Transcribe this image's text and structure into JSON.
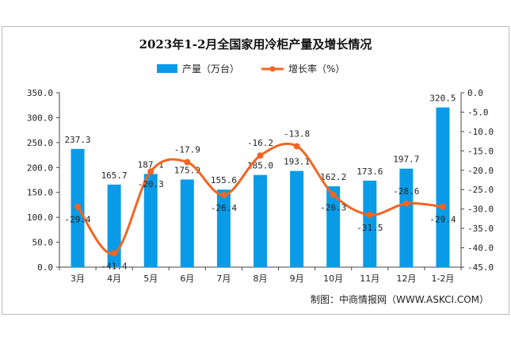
{
  "chart_data": {
    "type": "bar+line",
    "title": "2023年1-2月全国家用冷柜产量及增长情况",
    "categories": [
      "3月",
      "4月",
      "5月",
      "6月",
      "7月",
      "8月",
      "9月",
      "10月",
      "11月",
      "12月",
      "1-2月"
    ],
    "series": [
      {
        "name": "产量（万台）",
        "type": "bar",
        "axis": "left",
        "color": "#0a9be8",
        "values": [
          237.3,
          165.7,
          187.1,
          175.9,
          155.6,
          185.0,
          193.1,
          162.2,
          173.6,
          197.7,
          320.5
        ]
      },
      {
        "name": "增长率（%）",
        "type": "line",
        "axis": "right",
        "color": "#f26522",
        "values": [
          -29.4,
          -41.4,
          -20.3,
          -17.9,
          -26.4,
          -16.2,
          -13.8,
          -26.3,
          -31.5,
          -28.6,
          -29.4
        ]
      }
    ],
    "left_axis": {
      "range": [
        0,
        350
      ],
      "ticks": [
        "0.0",
        "50.0",
        "100.0",
        "150.0",
        "200.0",
        "250.0",
        "300.0",
        "350.0"
      ]
    },
    "right_axis": {
      "range": [
        -45,
        0
      ],
      "ticks": [
        "-45.0",
        "-40.0",
        "-35.0",
        "-30.0",
        "-25.0",
        "-20.0",
        "-15.0",
        "-10.0",
        "-5.0",
        "0.0"
      ]
    },
    "grid": false,
    "legend": "top"
  },
  "footer": "制图：中商情报网（WWW.ASKCI.COM）"
}
